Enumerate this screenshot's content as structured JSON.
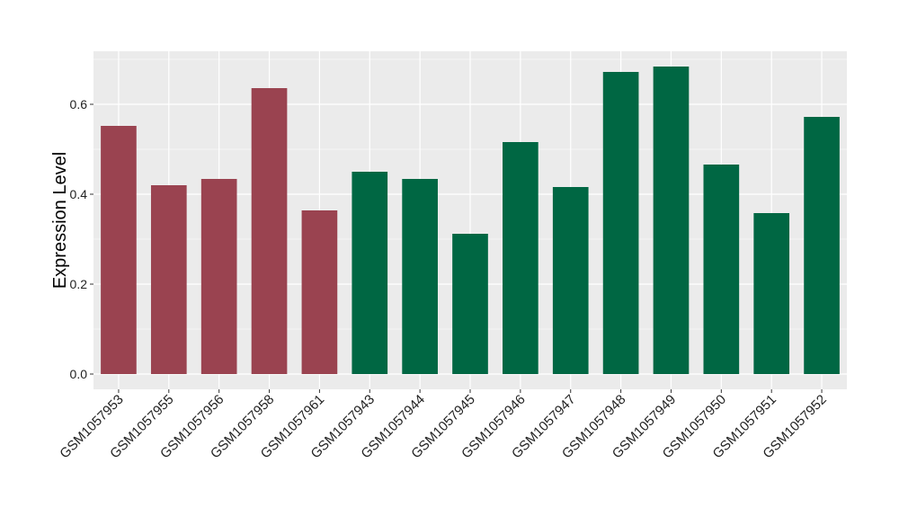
{
  "chart_data": {
    "type": "bar",
    "title": "",
    "xlabel": "",
    "ylabel": "Expression Level",
    "ylim": [
      -0.034,
      0.718
    ],
    "yticks": [
      0.0,
      0.2,
      0.4,
      0.6
    ],
    "ytick_labels": [
      "0.0",
      "0.2",
      "0.4",
      "0.6"
    ],
    "grid": true,
    "legend": "none",
    "categories": [
      "GSM1057953",
      "GSM1057955",
      "GSM1057956",
      "GSM1057958",
      "GSM1057961",
      "GSM1057943",
      "GSM1057944",
      "GSM1057945",
      "GSM1057946",
      "GSM1057947",
      "GSM1057948",
      "GSM1057949",
      "GSM1057950",
      "GSM1057951",
      "GSM1057952"
    ],
    "values": [
      0.552,
      0.42,
      0.434,
      0.636,
      0.364,
      0.45,
      0.434,
      0.312,
      0.516,
      0.416,
      0.672,
      0.684,
      0.466,
      0.358,
      0.572
    ],
    "groups": [
      0,
      0,
      0,
      0,
      0,
      1,
      1,
      1,
      1,
      1,
      1,
      1,
      1,
      1,
      1
    ],
    "group_colors": [
      "#9A4350",
      "#006743"
    ],
    "panel_background": "#EBEBEB"
  }
}
